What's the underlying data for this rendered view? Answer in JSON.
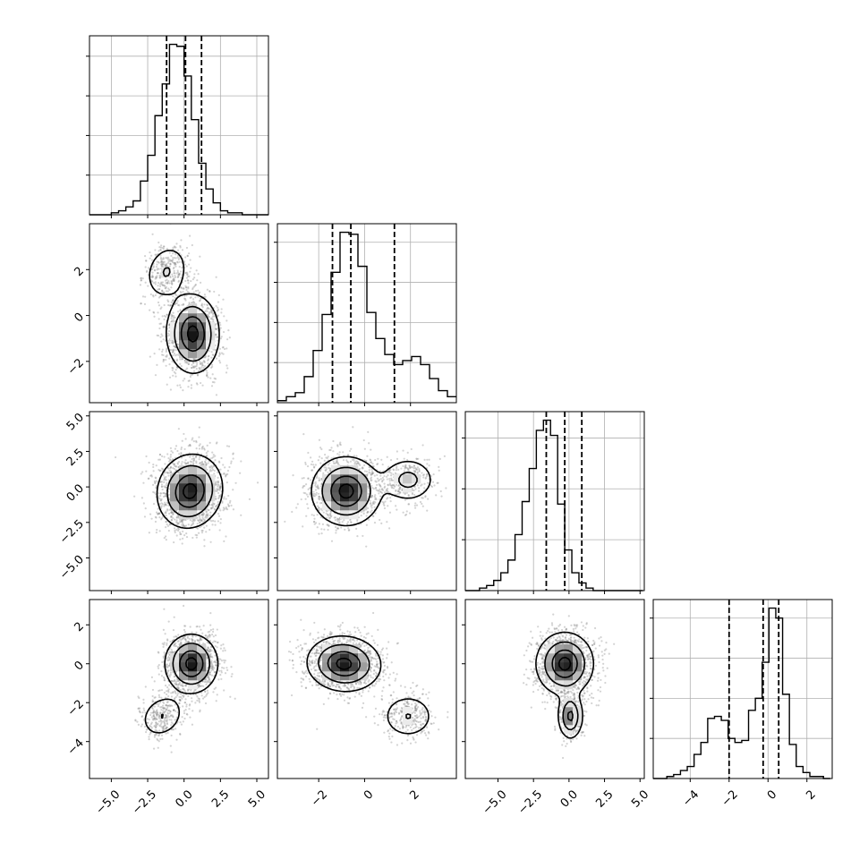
{
  "chart_data": {
    "type": "corner",
    "grid": true,
    "dimensions": 4,
    "ranges": [
      [
        -6.5,
        5.8
      ],
      [
        -3.8,
        4.0
      ],
      [
        -7.3,
        5.3
      ],
      [
        -5.9,
        3.3
      ]
    ],
    "ticks": [
      {
        "values": [
          -5.0,
          -2.5,
          0.0,
          2.5,
          5.0
        ],
        "labels": [
          "−5.0",
          "−2.5",
          "0.0",
          "2.5",
          "5.0"
        ]
      },
      {
        "values": [
          -2,
          0,
          2
        ],
        "labels": [
          "−2",
          "0",
          "2"
        ]
      },
      {
        "values": [
          -5.0,
          -2.5,
          0.0,
          2.5,
          5.0
        ],
        "labels": [
          "−5.0",
          "−2.5",
          "0.0",
          "2.5",
          "5.0"
        ]
      },
      {
        "values": [
          -4,
          -2,
          0,
          2
        ],
        "labels": [
          "−4",
          "−2",
          "0",
          "2"
        ]
      }
    ],
    "quantiles": [
      [
        -1.2,
        0.1,
        1.2
      ],
      [
        -1.4,
        -0.6,
        1.3
      ],
      [
        -1.6,
        -0.3,
        0.9
      ],
      [
        -2.0,
        -0.25,
        0.55
      ]
    ],
    "marginals": [
      {
        "x": -6.5,
        "bin": 0.5,
        "counts": [
          0,
          0,
          0,
          1,
          2,
          4,
          7,
          17,
          30,
          50,
          66,
          86,
          85,
          70,
          48,
          26,
          13,
          6,
          2,
          1,
          1,
          0,
          0,
          0,
          0
        ]
      },
      {
        "x": -3.8,
        "bin": 0.39,
        "counts": [
          1,
          3,
          5,
          13,
          26,
          44,
          65,
          85,
          84,
          68,
          45,
          32,
          24,
          19,
          21,
          23,
          19,
          12,
          6,
          3
        ]
      },
      {
        "x": -7.3,
        "bin": 0.5,
        "counts": [
          0,
          0,
          1,
          2,
          4,
          7,
          12,
          22,
          35,
          48,
          63,
          67,
          61,
          34,
          16,
          7,
          3,
          1,
          0,
          0,
          0,
          0,
          0,
          0,
          0
        ]
      },
      {
        "x": -5.9,
        "bin": 0.35,
        "counts": [
          0,
          0,
          1,
          2,
          4,
          6,
          12,
          18,
          30,
          31,
          29,
          20,
          18,
          19,
          34,
          40,
          58,
          85,
          80,
          42,
          17,
          6,
          3,
          1,
          1,
          0
        ]
      }
    ],
    "pairs": [
      {
        "row": 1,
        "col": 0,
        "clusters": [
          {
            "cx": 0.6,
            "cy": -0.8,
            "sx": 0.9,
            "sy": 0.85,
            "w": 0.8,
            "t": -0.2
          },
          {
            "cx": -1.2,
            "cy": 1.9,
            "sx": 0.8,
            "sy": 0.6,
            "w": 0.2,
            "t": 0.35
          }
        ]
      },
      {
        "row": 2,
        "col": 0,
        "clusters": [
          {
            "cx": 0.4,
            "cy": -0.3,
            "sx": 1.1,
            "sy": 1.3,
            "w": 1.0,
            "t": -0.25
          }
        ]
      },
      {
        "row": 2,
        "col": 1,
        "clusters": [
          {
            "cx": -0.8,
            "cy": -0.3,
            "sx": 0.75,
            "sy": 1.2,
            "w": 0.8,
            "t": 0.0
          },
          {
            "cx": 1.9,
            "cy": 0.5,
            "sx": 0.6,
            "sy": 0.8,
            "w": 0.2,
            "t": 0.0
          }
        ]
      },
      {
        "row": 3,
        "col": 0,
        "clusters": [
          {
            "cx": 0.5,
            "cy": 0.0,
            "sx": 0.9,
            "sy": 0.75,
            "w": 0.8,
            "t": 0.0
          },
          {
            "cx": -1.5,
            "cy": -2.7,
            "sx": 0.8,
            "sy": 0.55,
            "w": 0.2,
            "t": 0.3
          }
        ]
      },
      {
        "row": 3,
        "col": 1,
        "clusters": [
          {
            "cx": -0.9,
            "cy": 0.0,
            "sx": 0.8,
            "sy": 0.7,
            "w": 0.8,
            "t": -0.2
          },
          {
            "cx": 1.9,
            "cy": -2.7,
            "sx": 0.6,
            "sy": 0.6,
            "w": 0.2,
            "t": 0.0
          }
        ]
      },
      {
        "row": 3,
        "col": 2,
        "clusters": [
          {
            "cx": -0.3,
            "cy": 0.0,
            "sx": 1.0,
            "sy": 0.8,
            "w": 0.8,
            "t": 0.0
          },
          {
            "cx": 0.1,
            "cy": -2.7,
            "sx": 0.45,
            "sy": 0.6,
            "w": 0.2,
            "t": 0.0
          }
        ]
      }
    ]
  }
}
